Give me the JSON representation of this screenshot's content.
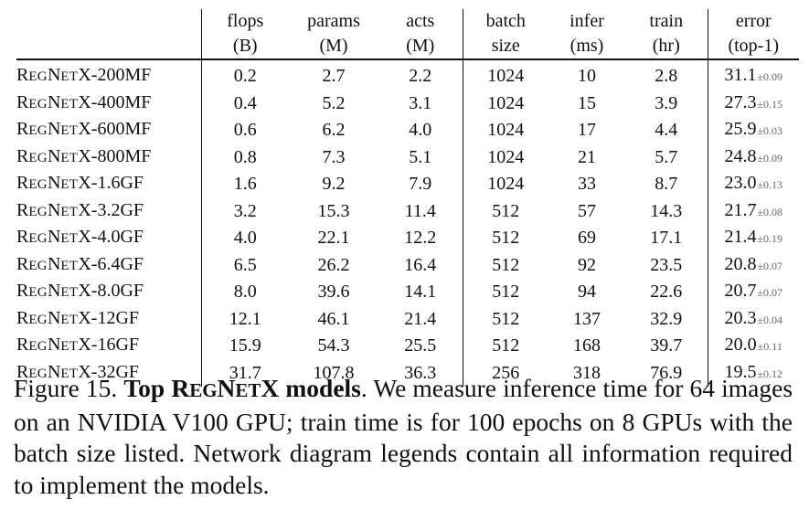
{
  "table": {
    "headers": [
      {
        "line1": "",
        "line2": ""
      },
      {
        "line1": "flops",
        "line2": "(B)"
      },
      {
        "line1": "params",
        "line2": "(M)"
      },
      {
        "line1": "acts",
        "line2": "(M)"
      },
      {
        "line1": "batch",
        "line2": "size"
      },
      {
        "line1": "infer",
        "line2": "(ms)"
      },
      {
        "line1": "train",
        "line2": "(hr)"
      },
      {
        "line1": "error",
        "line2": "(top-1)"
      }
    ],
    "rows": [
      {
        "model": "200MF",
        "flops": "0.2",
        "params": "2.7",
        "acts": "2.2",
        "batch": "1024",
        "infer": "10",
        "train": "2.8",
        "error": "31.1",
        "error_sd": "±0.09"
      },
      {
        "model": "400MF",
        "flops": "0.4",
        "params": "5.2",
        "acts": "3.1",
        "batch": "1024",
        "infer": "15",
        "train": "3.9",
        "error": "27.3",
        "error_sd": "±0.15"
      },
      {
        "model": "600MF",
        "flops": "0.6",
        "params": "6.2",
        "acts": "4.0",
        "batch": "1024",
        "infer": "17",
        "train": "4.4",
        "error": "25.9",
        "error_sd": "±0.03"
      },
      {
        "model": "800MF",
        "flops": "0.8",
        "params": "7.3",
        "acts": "5.1",
        "batch": "1024",
        "infer": "21",
        "train": "5.7",
        "error": "24.8",
        "error_sd": "±0.09"
      },
      {
        "model": "1.6GF",
        "flops": "1.6",
        "params": "9.2",
        "acts": "7.9",
        "batch": "1024",
        "infer": "33",
        "train": "8.7",
        "error": "23.0",
        "error_sd": "±0.13"
      },
      {
        "model": "3.2GF",
        "flops": "3.2",
        "params": "15.3",
        "acts": "11.4",
        "batch": "512",
        "infer": "57",
        "train": "14.3",
        "error": "21.7",
        "error_sd": "±0.08"
      },
      {
        "model": "4.0GF",
        "flops": "4.0",
        "params": "22.1",
        "acts": "12.2",
        "batch": "512",
        "infer": "69",
        "train": "17.1",
        "error": "21.4",
        "error_sd": "±0.19"
      },
      {
        "model": "6.4GF",
        "flops": "6.5",
        "params": "26.2",
        "acts": "16.4",
        "batch": "512",
        "infer": "92",
        "train": "23.5",
        "error": "20.8",
        "error_sd": "±0.07"
      },
      {
        "model": "8.0GF",
        "flops": "8.0",
        "params": "39.6",
        "acts": "14.1",
        "batch": "512",
        "infer": "94",
        "train": "22.6",
        "error": "20.7",
        "error_sd": "±0.07"
      },
      {
        "model": "12GF",
        "flops": "12.1",
        "params": "46.1",
        "acts": "21.4",
        "batch": "512",
        "infer": "137",
        "train": "32.9",
        "error": "20.3",
        "error_sd": "±0.04"
      },
      {
        "model": "16GF",
        "flops": "15.9",
        "params": "54.3",
        "acts": "25.5",
        "batch": "512",
        "infer": "168",
        "train": "39.7",
        "error": "20.0",
        "error_sd": "±0.11"
      },
      {
        "model": "32GF",
        "flops": "31.7",
        "params": "107.8",
        "acts": "36.3",
        "batch": "256",
        "infer": "318",
        "train": "76.9",
        "error": "19.5",
        "error_sd": "±0.12"
      }
    ],
    "model_prefix": "REGNETX-"
  },
  "caption": {
    "label": "Figure 15.",
    "title": "Top REGNETX models",
    "body": ". We measure inference time for 64 images on an NVIDIA V100 GPU; train time is for 100 epochs on 8 GPUs with the batch size listed. Network diagram legends contain all information required to implement the models."
  }
}
